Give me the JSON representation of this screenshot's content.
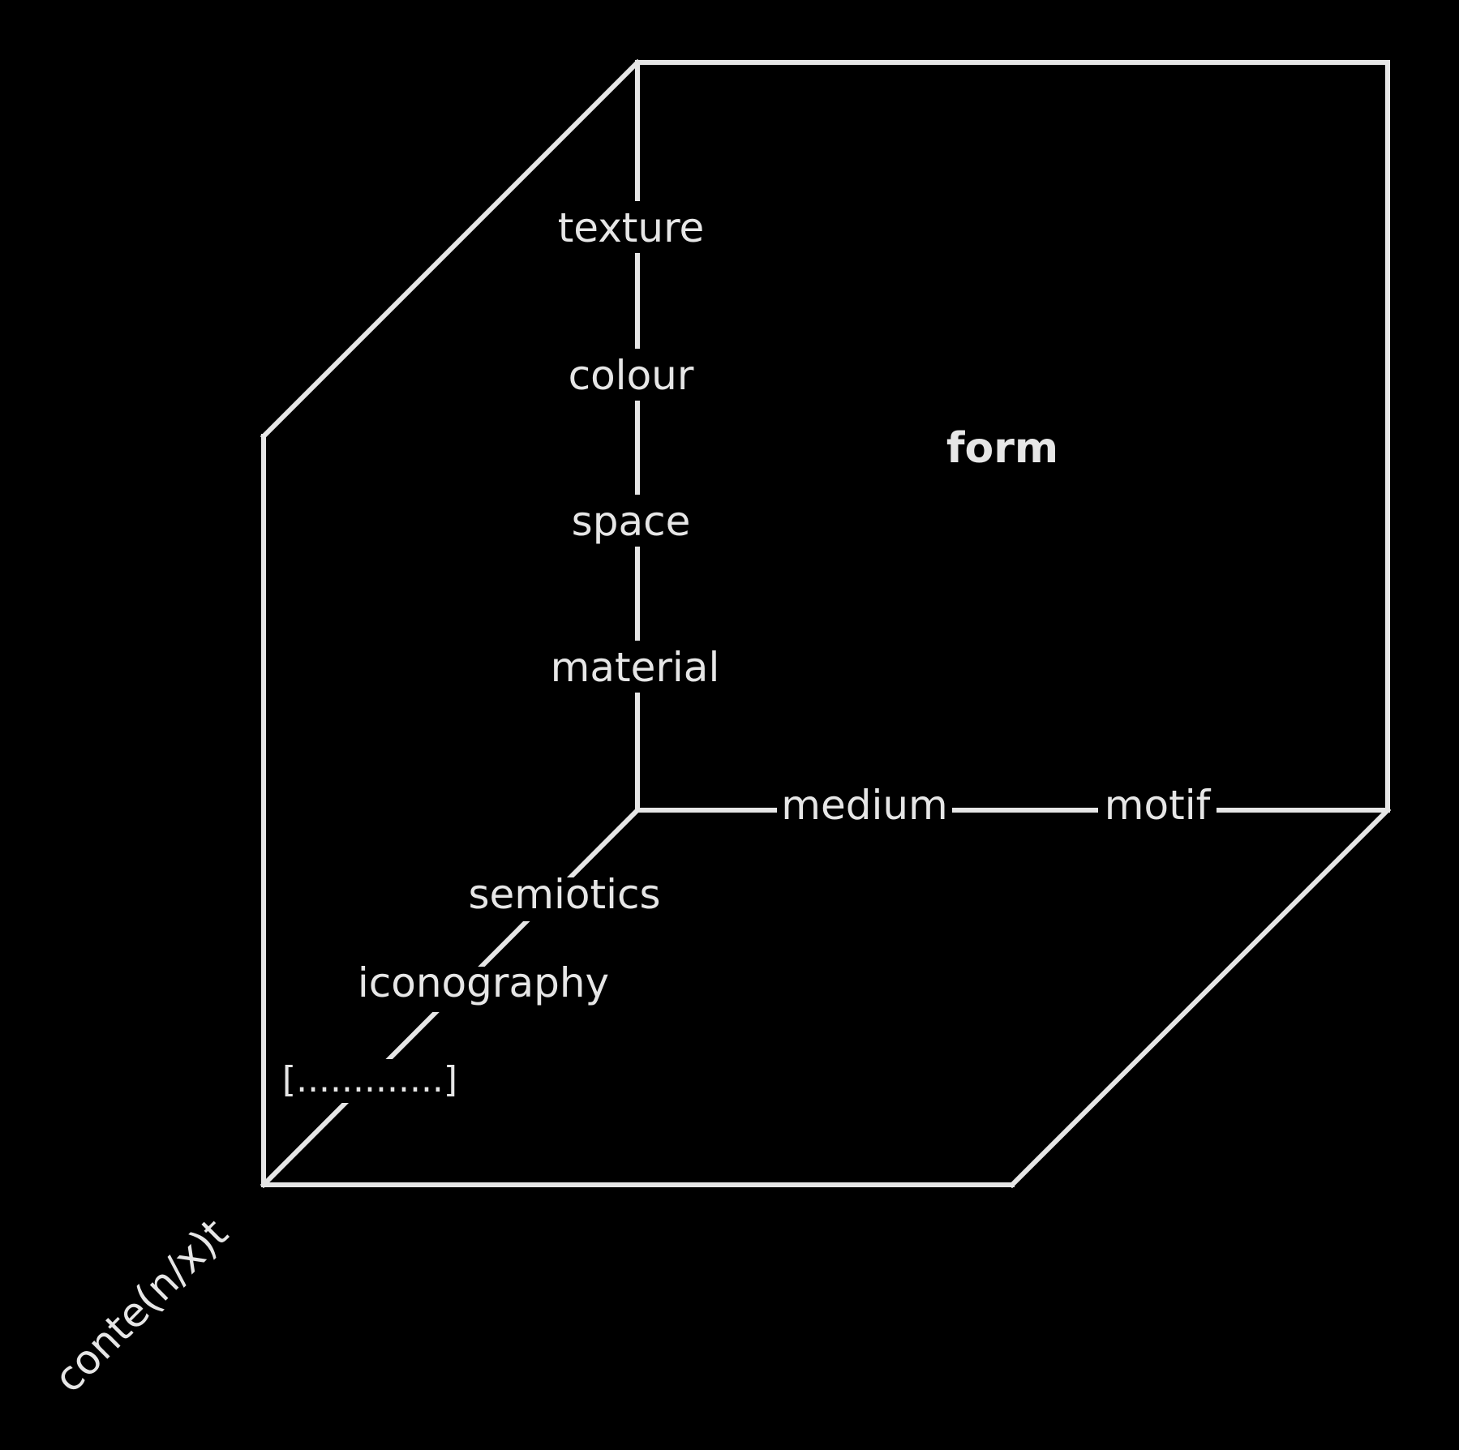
{
  "colors": {
    "background": "#000000",
    "line": "#e6e6e6",
    "text": "#e6e6e6"
  },
  "vertical_axis": [
    "texture",
    "colour",
    "space",
    "material"
  ],
  "horizontal_axis": [
    "medium",
    "motif"
  ],
  "depth_axis": [
    "semiotics",
    "iconography",
    "[.............]"
  ],
  "center_label": "form",
  "corner_label": "conte(n/x)t"
}
